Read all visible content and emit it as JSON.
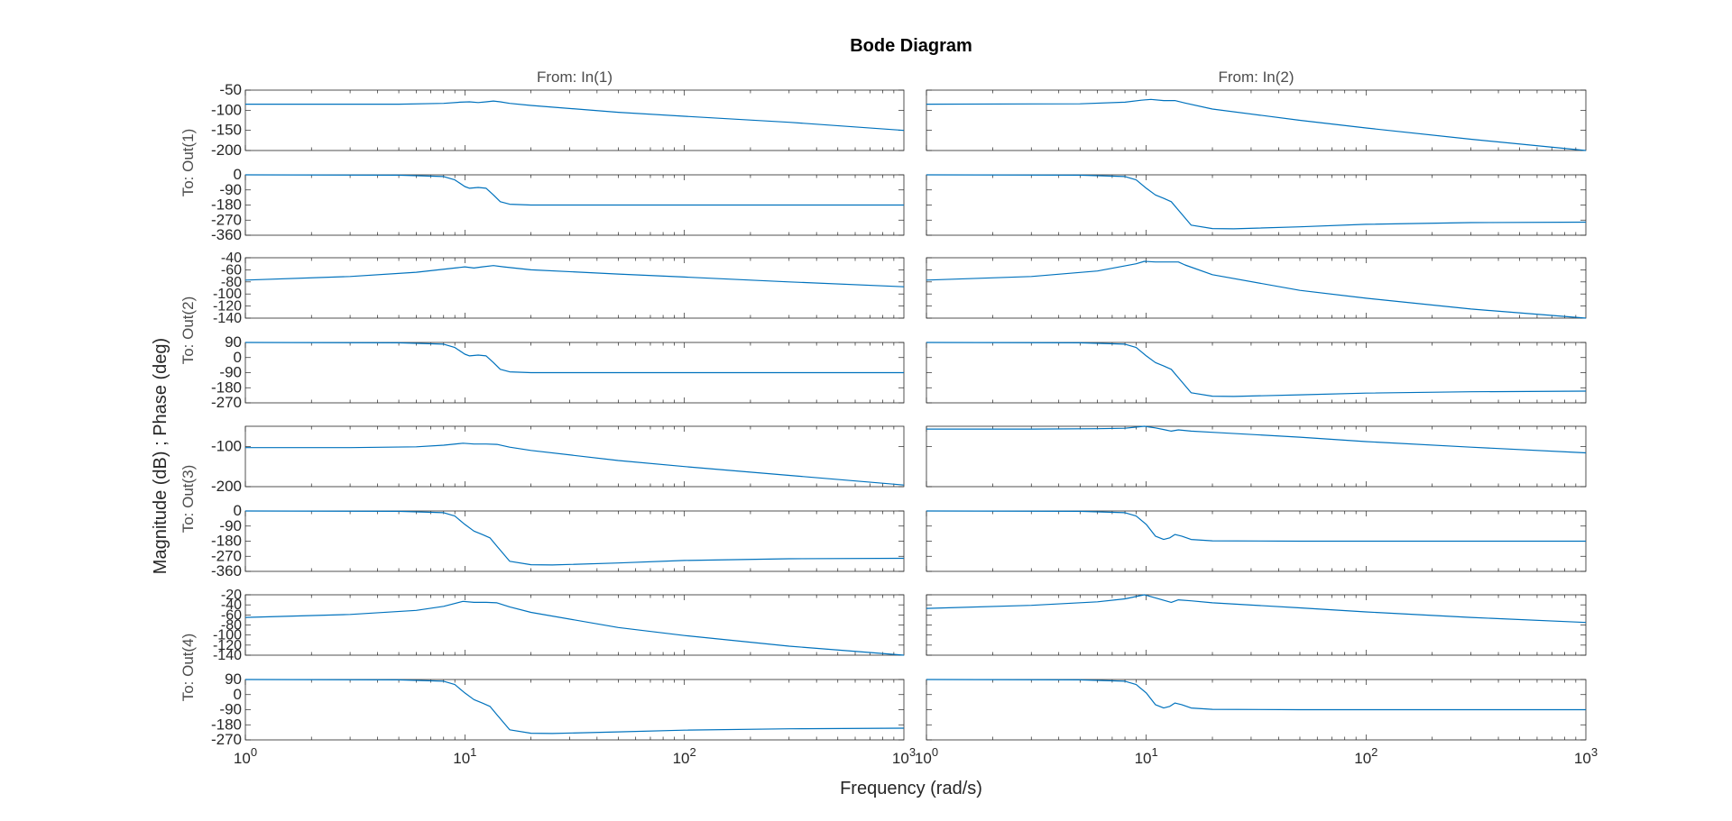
{
  "chart_data": {
    "type": "line",
    "title": "Bode Diagram",
    "xlabel": "Frequency  (rad/s)",
    "ylabel": "Magnitude (dB) ; Phase (deg)",
    "xscale": "log",
    "xlim": [
      1,
      1000
    ],
    "x_tick_labels": [
      {
        "base": "10",
        "exp": "0"
      },
      {
        "base": "10",
        "exp": "1"
      },
      {
        "base": "10",
        "exp": "2"
      },
      {
        "base": "10",
        "exp": "3"
      }
    ],
    "grid": false,
    "series_color": "#0072bd",
    "columns": [
      {
        "label": "From: In(1)"
      },
      {
        "label": "From: In(2)"
      }
    ],
    "rows": [
      {
        "label": "To: Out(1)",
        "magnitude": {
          "ylim": [
            -200,
            -50
          ],
          "ticks": [
            "-50",
            "-100",
            "-150",
            "-200"
          ]
        },
        "phase": {
          "ylim": [
            -360,
            0
          ],
          "ticks": [
            "0",
            "-90",
            "-180",
            "-270",
            "-360"
          ]
        }
      },
      {
        "label": "To: Out(2)",
        "magnitude": {
          "ylim": [
            -140,
            -40
          ],
          "ticks": [
            "-40",
            "-60",
            "-80",
            "-100",
            "-120",
            "-140"
          ]
        },
        "phase": {
          "ylim": [
            -270,
            90
          ],
          "ticks": [
            "90",
            "0",
            "-90",
            "-180",
            "-270"
          ]
        }
      },
      {
        "label": "To: Out(3)",
        "magnitude": {
          "ylim": [
            -200,
            -50
          ],
          "ticks": [
            "-100",
            "-200"
          ]
        },
        "phase": {
          "ylim": [
            -360,
            0
          ],
          "ticks": [
            "0",
            "-90",
            "-180",
            "-270",
            "-360"
          ]
        }
      },
      {
        "label": "To: Out(4)",
        "magnitude": {
          "ylim": [
            -140,
            -20
          ],
          "ticks": [
            "-20",
            "-40",
            "-60",
            "-80",
            "-100",
            "-120",
            "-140"
          ]
        },
        "phase": {
          "ylim": [
            -270,
            90
          ],
          "ticks": [
            "90",
            "0",
            "-90",
            "-180",
            "-270"
          ]
        }
      }
    ],
    "panels": [
      {
        "row": 0,
        "kind": "magnitude",
        "col": 0,
        "x": [
          1,
          5,
          8,
          9.5,
          10.5,
          11.5,
          12.5,
          13.5,
          14.5,
          16,
          20,
          50,
          100,
          300,
          1000
        ],
        "y": [
          -85,
          -85,
          -83,
          -80,
          -79,
          -81,
          -79,
          -77,
          -79,
          -83,
          -88,
          -105,
          -115,
          -130,
          -150
        ]
      },
      {
        "row": 0,
        "kind": "magnitude",
        "col": 1,
        "x": [
          1,
          5,
          8,
          9.5,
          10.5,
          12,
          13.5,
          15,
          20,
          50,
          100,
          300,
          1000
        ],
        "y": [
          -85,
          -84,
          -80,
          -75,
          -73,
          -76,
          -76,
          -82,
          -97,
          -125,
          -144,
          -172,
          -200
        ]
      },
      {
        "row": 0,
        "kind": "phase",
        "col": 0,
        "x": [
          1,
          5,
          8,
          9,
          10,
          10.5,
          11.5,
          12.5,
          13.5,
          14.5,
          16,
          20,
          50,
          100,
          1000
        ],
        "y": [
          0,
          -2,
          -10,
          -30,
          -70,
          -80,
          -75,
          -80,
          -120,
          -160,
          -175,
          -180,
          -180,
          -180,
          -180
        ]
      },
      {
        "row": 0,
        "kind": "phase",
        "col": 1,
        "x": [
          1,
          5,
          8,
          9,
          10,
          11,
          12,
          13,
          14,
          16,
          20,
          25,
          50,
          100,
          300,
          1000
        ],
        "y": [
          0,
          -2,
          -10,
          -30,
          -80,
          -120,
          -140,
          -160,
          -210,
          -300,
          -320,
          -322,
          -310,
          -295,
          -285,
          -282
        ]
      },
      {
        "row": 1,
        "kind": "magnitude",
        "col": 0,
        "x": [
          1,
          3,
          6,
          9,
          10,
          11,
          12,
          13.5,
          15,
          20,
          50,
          100,
          300,
          1000
        ],
        "y": [
          -77,
          -71,
          -64,
          -57,
          -55,
          -57,
          -55,
          -53,
          -55,
          -60,
          -67,
          -72,
          -80,
          -88
        ]
      },
      {
        "row": 1,
        "kind": "magnitude",
        "col": 1,
        "x": [
          1,
          3,
          6,
          9,
          9.8,
          11,
          12.5,
          14,
          15,
          20,
          50,
          100,
          300,
          1000
        ],
        "y": [
          -77,
          -71,
          -62,
          -50,
          -46,
          -47,
          -47,
          -47,
          -52,
          -68,
          -94,
          -107,
          -125,
          -140
        ]
      },
      {
        "row": 1,
        "kind": "phase",
        "col": 0,
        "x": [
          1,
          5,
          8,
          9,
          10,
          10.5,
          11.5,
          12.5,
          13.5,
          14.5,
          16,
          20,
          50,
          100,
          1000
        ],
        "y": [
          90,
          88,
          80,
          60,
          20,
          10,
          15,
          10,
          -30,
          -70,
          -85,
          -90,
          -90,
          -90,
          -90
        ]
      },
      {
        "row": 1,
        "kind": "phase",
        "col": 1,
        "x": [
          1,
          5,
          8,
          9,
          10,
          11,
          12,
          13,
          14,
          16,
          20,
          25,
          50,
          100,
          300,
          1000
        ],
        "y": [
          90,
          88,
          80,
          60,
          10,
          -30,
          -50,
          -70,
          -120,
          -210,
          -230,
          -232,
          -222,
          -212,
          -204,
          -200
        ]
      },
      {
        "row": 2,
        "kind": "magnitude",
        "col": 0,
        "x": [
          1,
          3,
          6,
          8,
          9.8,
          11,
          12.5,
          14,
          16,
          20,
          50,
          100,
          300,
          1000
        ],
        "y": [
          -103,
          -103,
          -101,
          -97,
          -92,
          -94,
          -94,
          -95,
          -102,
          -110,
          -135,
          -150,
          -172,
          -196
        ]
      },
      {
        "row": 2,
        "kind": "magnitude",
        "col": 1,
        "x": [
          1,
          3,
          6,
          8,
          9.8,
          11,
          12,
          13,
          14,
          16,
          20,
          50,
          100,
          300,
          1000
        ],
        "y": [
          -57,
          -57,
          -56,
          -55,
          -50,
          -54,
          -58,
          -62,
          -59,
          -62,
          -65,
          -77,
          -88,
          -102,
          -116
        ]
      },
      {
        "row": 2,
        "kind": "phase",
        "col": 0,
        "x": [
          1,
          5,
          8,
          9,
          10,
          11,
          12,
          13,
          14,
          16,
          20,
          25,
          50,
          100,
          300,
          1000
        ],
        "y": [
          0,
          -2,
          -10,
          -30,
          -80,
          -120,
          -140,
          -160,
          -210,
          -300,
          -320,
          -322,
          -310,
          -295,
          -285,
          -282
        ]
      },
      {
        "row": 2,
        "kind": "phase",
        "col": 1,
        "x": [
          1,
          5,
          8,
          9,
          10,
          11,
          12,
          12.8,
          13.5,
          14.5,
          16,
          20,
          50,
          100,
          1000
        ],
        "y": [
          0,
          -2,
          -10,
          -30,
          -80,
          -150,
          -170,
          -160,
          -140,
          -150,
          -170,
          -178,
          -180,
          -180,
          -180
        ]
      },
      {
        "row": 3,
        "kind": "magnitude",
        "col": 0,
        "x": [
          1,
          3,
          6,
          8,
          9.8,
          11,
          12.5,
          14,
          16,
          20,
          50,
          100,
          300,
          1000
        ],
        "y": [
          -65,
          -59,
          -51,
          -43,
          -33,
          -35,
          -35,
          -36,
          -44,
          -55,
          -85,
          -101,
          -122,
          -140
        ]
      },
      {
        "row": 3,
        "kind": "magnitude",
        "col": 1,
        "x": [
          1,
          3,
          6,
          8,
          9.8,
          11,
          12,
          13,
          14,
          16,
          20,
          50,
          100,
          300,
          1000
        ],
        "y": [
          -47,
          -41,
          -34,
          -28,
          -20,
          -26,
          -31,
          -35,
          -30,
          -32,
          -36,
          -46,
          -54,
          -65,
          -75
        ]
      },
      {
        "row": 3,
        "kind": "phase",
        "col": 0,
        "x": [
          1,
          5,
          8,
          9,
          10,
          11,
          12,
          13,
          14,
          16,
          20,
          25,
          50,
          100,
          300,
          1000
        ],
        "y": [
          90,
          88,
          80,
          60,
          10,
          -30,
          -50,
          -70,
          -120,
          -210,
          -230,
          -232,
          -222,
          -212,
          -204,
          -200
        ]
      },
      {
        "row": 3,
        "kind": "phase",
        "col": 1,
        "x": [
          1,
          5,
          8,
          9,
          10,
          11,
          12,
          12.8,
          13.5,
          14.5,
          16,
          20,
          50,
          100,
          1000
        ],
        "y": [
          90,
          88,
          80,
          60,
          10,
          -60,
          -80,
          -70,
          -50,
          -60,
          -80,
          -88,
          -90,
          -90,
          -90
        ]
      }
    ]
  }
}
